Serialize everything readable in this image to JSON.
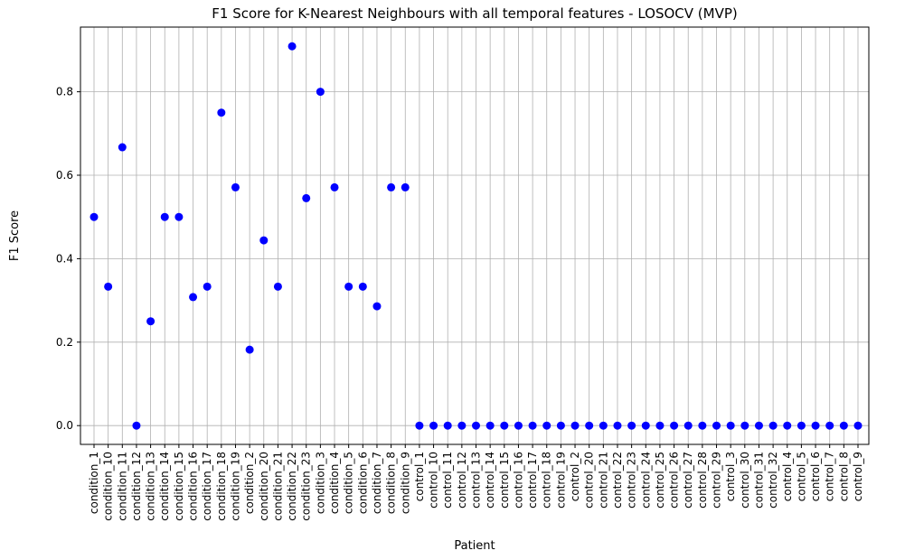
{
  "chart_data": {
    "type": "scatter",
    "title": "F1 Score for K-Nearest Neighbours with all temporal features - LOSOCV (MVP)",
    "xlabel": "Patient",
    "ylabel": "F1 Score",
    "categories": [
      "condition_1",
      "condition_10",
      "condition_11",
      "condition_12",
      "condition_13",
      "condition_14",
      "condition_15",
      "condition_16",
      "condition_17",
      "condition_18",
      "condition_19",
      "condition_2",
      "condition_20",
      "condition_21",
      "condition_22",
      "condition_23",
      "condition_3",
      "condition_4",
      "condition_5",
      "condition_6",
      "condition_7",
      "condition_8",
      "condition_9",
      "control_1",
      "control_10",
      "control_11",
      "control_12",
      "control_13",
      "control_14",
      "control_15",
      "control_16",
      "control_17",
      "control_18",
      "control_19",
      "control_2",
      "control_20",
      "control_21",
      "control_22",
      "control_23",
      "control_24",
      "control_25",
      "control_26",
      "control_27",
      "control_28",
      "control_29",
      "control_3",
      "control_30",
      "control_31",
      "control_32",
      "control_4",
      "control_5",
      "control_6",
      "control_7",
      "control_8",
      "control_9"
    ],
    "values": [
      0.5,
      0.333,
      0.667,
      0.0,
      0.25,
      0.5,
      0.5,
      0.308,
      0.333,
      0.75,
      0.571,
      0.182,
      0.444,
      0.333,
      0.909,
      0.545,
      0.8,
      0.571,
      0.333,
      0.333,
      0.286,
      0.571,
      0.571,
      0,
      0,
      0,
      0,
      0,
      0,
      0,
      0,
      0,
      0,
      0,
      0,
      0,
      0,
      0,
      0,
      0,
      0,
      0,
      0,
      0,
      0,
      0,
      0,
      0,
      0,
      0,
      0,
      0,
      0,
      0,
      0
    ],
    "yticks": [
      "0.0",
      "0.2",
      "0.4",
      "0.6",
      "0.8"
    ],
    "ytick_values": [
      0.0,
      0.2,
      0.4,
      0.6,
      0.8
    ],
    "ylim": [
      -0.045,
      0.955
    ],
    "grid": true,
    "marker_color": "#0000ff"
  }
}
